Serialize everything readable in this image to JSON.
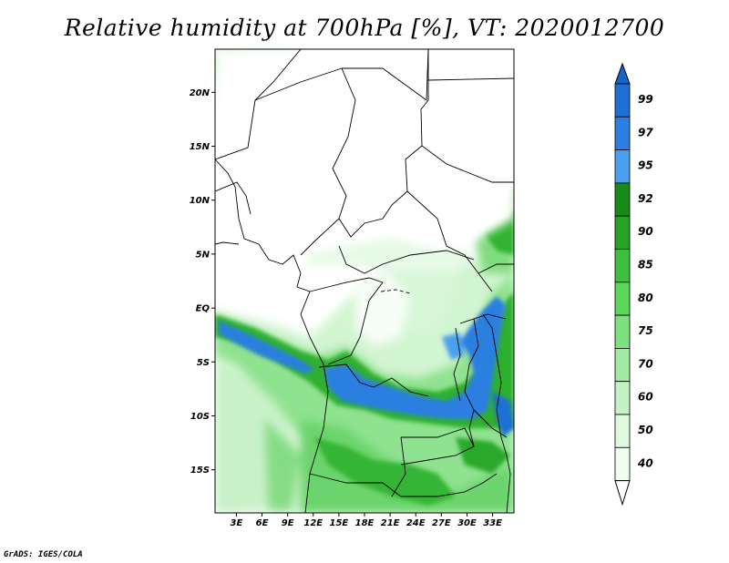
{
  "title": "Relative humidity at 700hPa [%], VT: 2020012700",
  "footer": "GrADS: IGES/COLA",
  "map": {
    "lat_range": [
      -19,
      24
    ],
    "lon_range": [
      0.5,
      35.5
    ],
    "lat_ticks": [
      {
        "value": 20,
        "label": "20N"
      },
      {
        "value": 15,
        "label": "15N"
      },
      {
        "value": 10,
        "label": "10N"
      },
      {
        "value": 5,
        "label": "5N"
      },
      {
        "value": 0,
        "label": "EQ"
      },
      {
        "value": -5,
        "label": "5S"
      },
      {
        "value": -10,
        "label": "10S"
      },
      {
        "value": -15,
        "label": "15S"
      }
    ],
    "lon_ticks": [
      {
        "value": 3,
        "label": "3E"
      },
      {
        "value": 6,
        "label": "6E"
      },
      {
        "value": 9,
        "label": "9E"
      },
      {
        "value": 12,
        "label": "12E"
      },
      {
        "value": 15,
        "label": "15E"
      },
      {
        "value": 18,
        "label": "18E"
      },
      {
        "value": 21,
        "label": "21E"
      },
      {
        "value": 24,
        "label": "24E"
      },
      {
        "value": 27,
        "label": "27E"
      },
      {
        "value": 30,
        "label": "30E"
      },
      {
        "value": 33,
        "label": "33E"
      }
    ]
  },
  "colorbar": {
    "levels": [
      {
        "label": "99",
        "color": "#1f6fd6"
      },
      {
        "label": "97",
        "color": "#2a7fe0"
      },
      {
        "label": "95",
        "color": "#4aa0ef"
      },
      {
        "label": "92",
        "color": "#178a17"
      },
      {
        "label": "90",
        "color": "#26a326"
      },
      {
        "label": "85",
        "color": "#3cbf3c"
      },
      {
        "label": "80",
        "color": "#5ad65a"
      },
      {
        "label": "75",
        "color": "#7ee07e"
      },
      {
        "label": "70",
        "color": "#a2e9a2"
      },
      {
        "label": "60",
        "color": "#c4f2c4"
      },
      {
        "label": "50",
        "color": "#def9de"
      },
      {
        "label": "40",
        "color": "#f2fdf2"
      }
    ],
    "top_color": "#1565c8",
    "bottom_color": "#ffffff"
  }
}
